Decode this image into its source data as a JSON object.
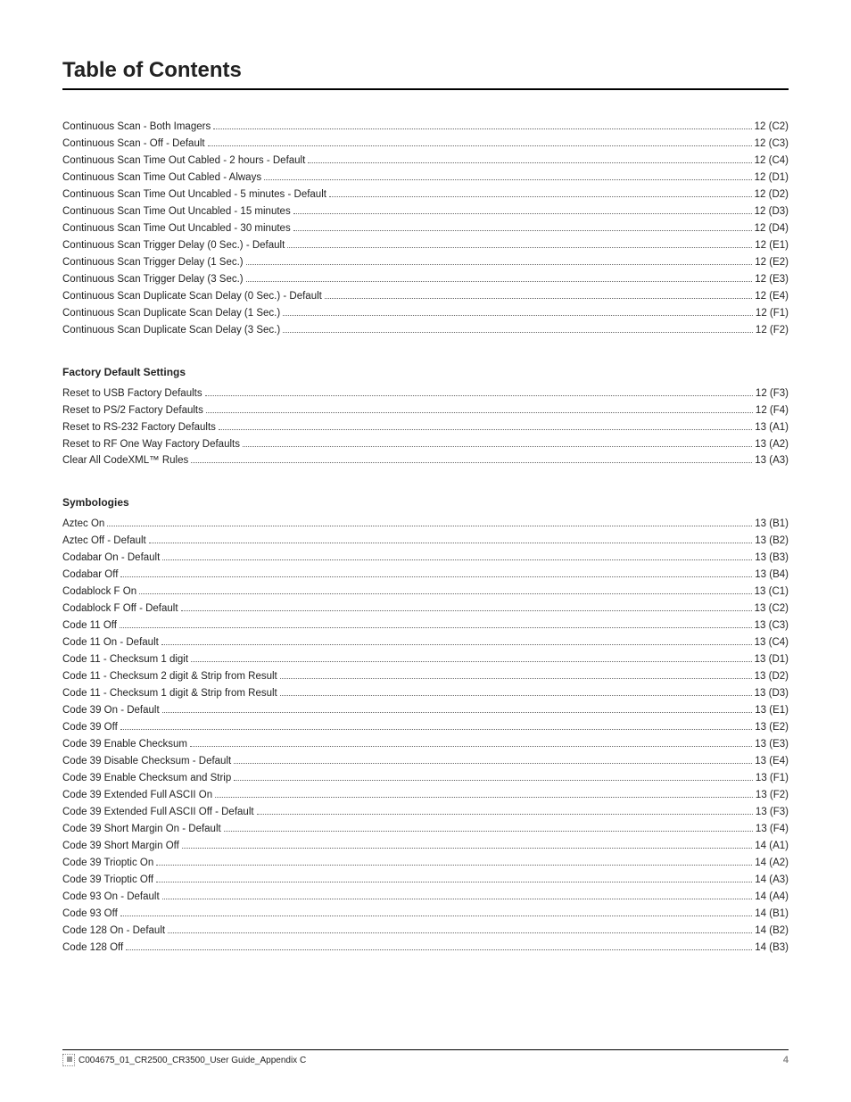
{
  "title": "Table of Contents",
  "sections": [
    {
      "header": null,
      "items": [
        {
          "label": "Continuous Scan - Both Imagers",
          "page": "12 (C2)"
        },
        {
          "label": "Continuous Scan - Off - Default",
          "page": "12 (C3)"
        },
        {
          "label": "Continuous Scan Time Out Cabled - 2 hours - Default",
          "page": "12 (C4)"
        },
        {
          "label": "Continuous Scan Time Out Cabled - Always",
          "page": "12 (D1)"
        },
        {
          "label": "Continuous Scan Time Out Uncabled - 5 minutes - Default",
          "page": "12 (D2)"
        },
        {
          "label": "Continuous Scan Time Out Uncabled - 15 minutes",
          "page": "12 (D3)"
        },
        {
          "label": "Continuous Scan Time Out Uncabled - 30 minutes",
          "page": "12 (D4)"
        },
        {
          "label": "Continuous Scan Trigger Delay (0 Sec.) - Default",
          "page": "12 (E1)"
        },
        {
          "label": "Continuous Scan Trigger Delay (1 Sec.)",
          "page": "12 (E2)"
        },
        {
          "label": "Continuous Scan Trigger Delay (3 Sec.)",
          "page": "12 (E3)"
        },
        {
          "label": "Continuous Scan Duplicate Scan Delay (0 Sec.) - Default",
          "page": "12 (E4)"
        },
        {
          "label": "Continuous Scan Duplicate Scan Delay (1 Sec.)",
          "page": "12 (F1)"
        },
        {
          "label": "Continuous Scan Duplicate Scan Delay (3 Sec.)",
          "page": "12 (F2)"
        }
      ]
    },
    {
      "header": "Factory Default Settings",
      "items": [
        {
          "label": "Reset to USB Factory Defaults",
          "page": "12 (F3)"
        },
        {
          "label": "Reset to PS/2 Factory Defaults",
          "page": "12 (F4)"
        },
        {
          "label": "Reset to RS-232 Factory Defaults",
          "page": "13 (A1)"
        },
        {
          "label": "Reset to RF One Way Factory Defaults",
          "page": "13 (A2)"
        },
        {
          "label": "Clear All CodeXML™ Rules",
          "page": "13 (A3)"
        }
      ]
    },
    {
      "header": "Symbologies",
      "items": [
        {
          "label": "Aztec On",
          "page": "13 (B1)"
        },
        {
          "label": "Aztec Off - Default",
          "page": "13 (B2)"
        },
        {
          "label": "Codabar On - Default",
          "page": "13 (B3)"
        },
        {
          "label": "Codabar Off",
          "page": "13 (B4)"
        },
        {
          "label": "Codablock F On",
          "page": "13 (C1)"
        },
        {
          "label": "Codablock F Off - Default",
          "page": "13 (C2)"
        },
        {
          "label": "Code 11 Off",
          "page": "13 (C3)"
        },
        {
          "label": "Code 11 On - Default",
          "page": "13 (C4)"
        },
        {
          "label": "Code 11 - Checksum 1 digit",
          "page": "13 (D1)"
        },
        {
          "label": "Code 11 - Checksum 2 digit & Strip from Result",
          "page": "13 (D2)"
        },
        {
          "label": "Code 11 - Checksum 1 digit & Strip from Result",
          "page": "13 (D3)"
        },
        {
          "label": "Code 39 On - Default",
          "page": "13 (E1)"
        },
        {
          "label": "Code 39 Off",
          "page": "13 (E2)"
        },
        {
          "label": "Code 39 Enable Checksum",
          "page": "13 (E3)"
        },
        {
          "label": "Code 39 Disable Checksum - Default",
          "page": "13 (E4)"
        },
        {
          "label": "Code 39 Enable Checksum and Strip",
          "page": "13 (F1)"
        },
        {
          "label": "Code 39 Extended Full ASCII On",
          "page": "13 (F2)"
        },
        {
          "label": "Code 39 Extended Full ASCII Off - Default",
          "page": "13 (F3)"
        },
        {
          "label": "Code 39 Short Margin On - Default",
          "page": "13 (F4)"
        },
        {
          "label": "Code 39 Short Margin Off",
          "page": "14 (A1)"
        },
        {
          "label": "Code 39 Trioptic On",
          "page": "14 (A2)"
        },
        {
          "label": "Code 39 Trioptic Off",
          "page": "14 (A3)"
        },
        {
          "label": "Code 93 On - Default",
          "page": "14 (A4)"
        },
        {
          "label": "Code 93 Off",
          "page": "14 (B1)"
        },
        {
          "label": "Code 128 On - Default",
          "page": "14 (B2)"
        },
        {
          "label": "Code 128 Off",
          "page": "14 (B3)"
        }
      ]
    }
  ],
  "footer": {
    "doc_ref": "C004675_01_CR2500_CR3500_User Guide_Appendix C",
    "page_number": "4"
  }
}
